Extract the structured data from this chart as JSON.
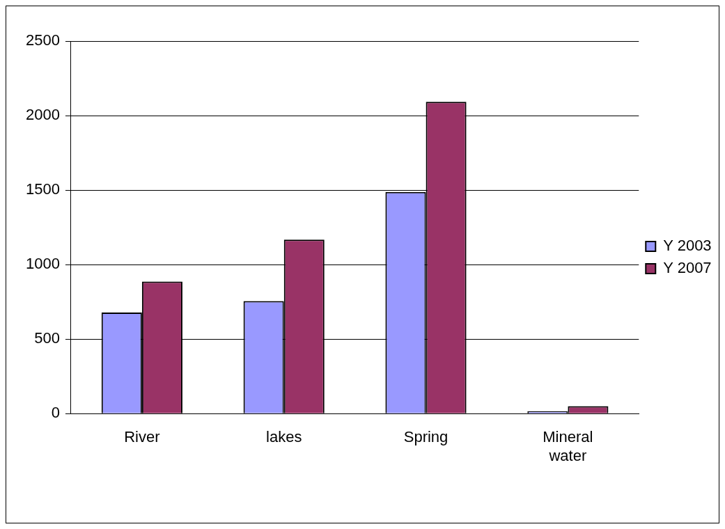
{
  "chart_data": {
    "type": "bar",
    "categories": [
      "River",
      "lakes",
      "Spring",
      "Mineral water"
    ],
    "series": [
      {
        "name": "Y 2003",
        "color": "#9999ff",
        "values": [
          678,
          755,
          1488,
          15
        ]
      },
      {
        "name": "Y 2007",
        "color": "#993366",
        "values": [
          886,
          1168,
          2093,
          50
        ]
      }
    ],
    "ylim": [
      0,
      2500
    ],
    "yticks": [
      0,
      500,
      1000,
      1500,
      2000,
      2500
    ],
    "grid": "y",
    "legend": "right"
  }
}
